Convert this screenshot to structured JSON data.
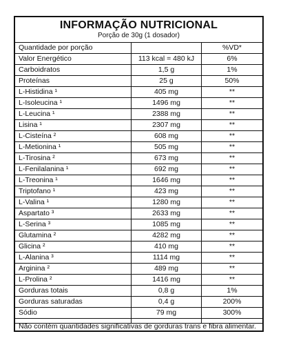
{
  "header": {
    "title": "INFORMAÇÃO NUTRICIONAL",
    "serving": "Porção de 30g (1 dosador)"
  },
  "table": {
    "header_row": {
      "label": "Quantidade por porção",
      "amount": "",
      "dv": "%VD*"
    },
    "rows": [
      {
        "label": "Valor Energético",
        "amount": "113 kcal = 480 kJ",
        "dv": "6%"
      },
      {
        "label": "Carboidratos",
        "amount": "1,5 g",
        "dv": "1%"
      },
      {
        "label": "Proteínas",
        "amount": "25 g",
        "dv": "50%"
      },
      {
        "label": "L-Histidina ¹",
        "amount": "405 mg",
        "dv": "**"
      },
      {
        "label": "L-Isoleucina ¹",
        "amount": "1496 mg",
        "dv": "**"
      },
      {
        "label": "L-Leucina ¹",
        "amount": "2388 mg",
        "dv": "**"
      },
      {
        "label": "Lisina ¹",
        "amount": "2307 mg",
        "dv": "**"
      },
      {
        "label": "L-Cisteína ²",
        "amount": "608 mg",
        "dv": "**"
      },
      {
        "label": "L-Metionina ¹",
        "amount": "505 mg",
        "dv": "**"
      },
      {
        "label": "L-Tirosina ²",
        "amount": "673 mg",
        "dv": "**"
      },
      {
        "label": "L-Fenilalanina ¹",
        "amount": "692 mg",
        "dv": "**"
      },
      {
        "label": "L-Treonina ¹",
        "amount": "1646 mg",
        "dv": "**"
      },
      {
        "label": "Triptofano ¹",
        "amount": "423 mg",
        "dv": "**"
      },
      {
        "label": "L-Valina ¹",
        "amount": "1280 mg",
        "dv": "**"
      },
      {
        "label": "Aspartato ³",
        "amount": "2633 mg",
        "dv": "**"
      },
      {
        "label": "L-Serina ³",
        "amount": "1085 mg",
        "dv": "**"
      },
      {
        "label": "Glutamina ²",
        "amount": "4282 mg",
        "dv": "**"
      },
      {
        "label": "Glicina ²",
        "amount": "410 mg",
        "dv": "**"
      },
      {
        "label": "L-Alanina ³",
        "amount": "1114 mg",
        "dv": "**"
      },
      {
        "label": "Arginina ²",
        "amount": "489 mg",
        "dv": "**"
      },
      {
        "label": "L-Prolina ²",
        "amount": "1416 mg",
        "dv": "**"
      },
      {
        "label": "Gorduras totais",
        "amount": "0,8 g",
        "dv": "1%"
      },
      {
        "label": "Gorduras saturadas",
        "amount": "0,4 g",
        "dv": "200%"
      },
      {
        "label": "Sódio",
        "amount": "79 mg",
        "dv": "300%"
      }
    ]
  },
  "footer": {
    "note": "Não contém quantidades significativas de gorduras trans e fibra alimentar."
  }
}
